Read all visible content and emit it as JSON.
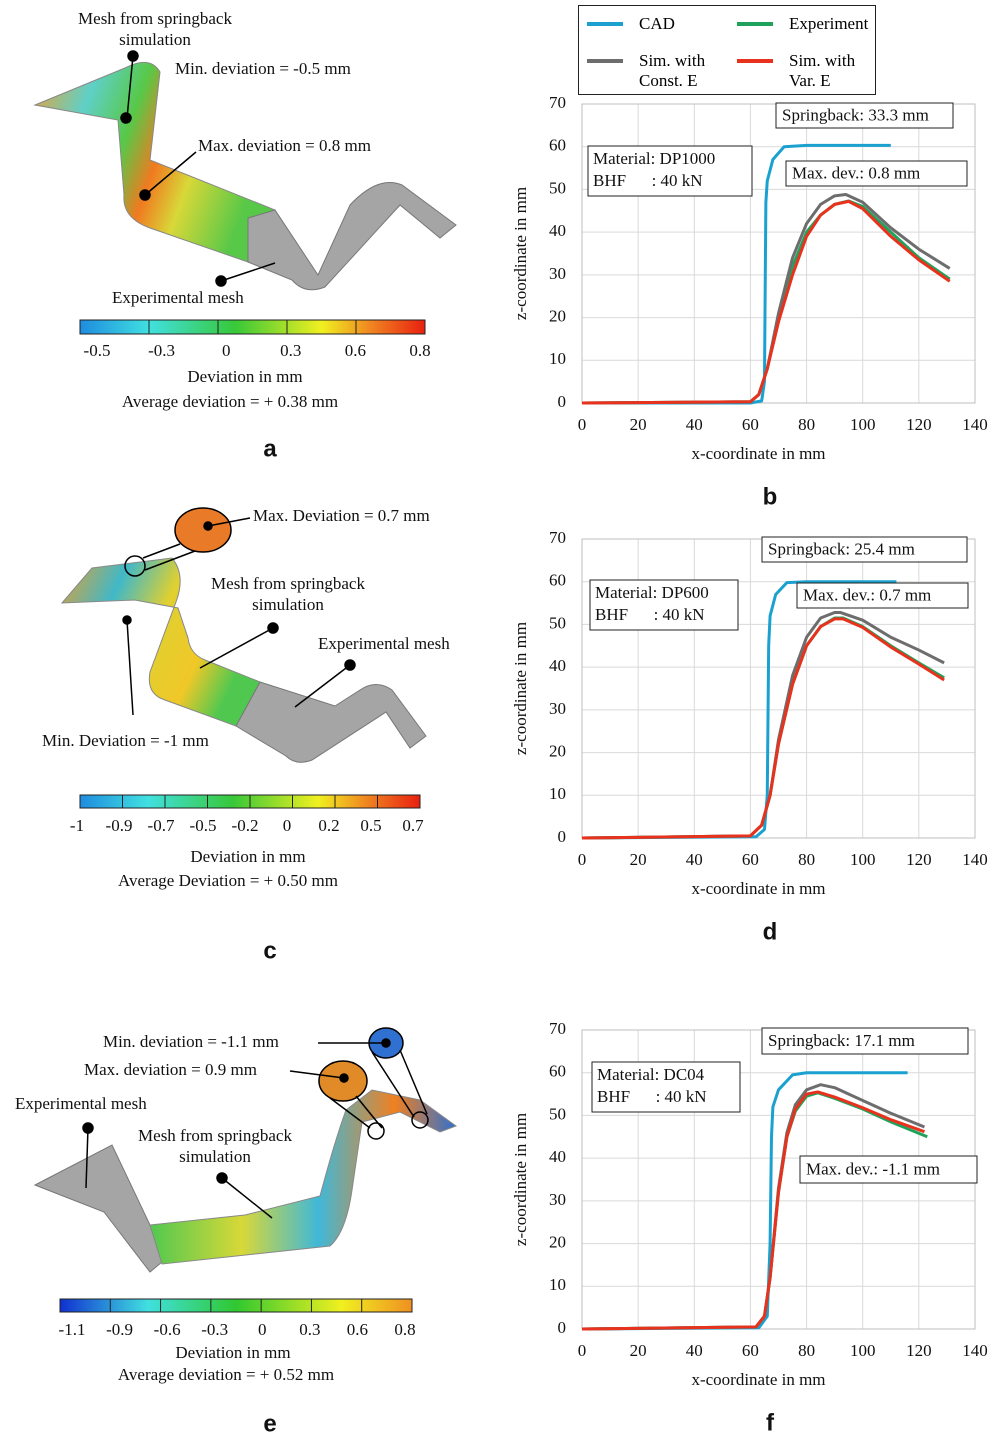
{
  "mesh_panels": [
    {
      "panel_label": "a",
      "annotations": [
        "Mesh from springback simulation",
        "Min. deviation = -0.5 mm",
        "Max. deviation = 0.8 mm",
        "Experimental mesh"
      ],
      "colorbar": {
        "ticks": [
          -0.5,
          -0.3,
          0,
          0.3,
          0.6,
          0.8
        ],
        "title": "Deviation in mm"
      },
      "average": "Average deviation = + 0.38 mm"
    },
    {
      "panel_label": "c",
      "annotations": [
        "Max. Deviation = 0.7 mm",
        "Mesh from springback simulation",
        "Experimental mesh",
        "Min. Deviation = -1 mm"
      ],
      "colorbar": {
        "ticks": [
          -1,
          -0.9,
          -0.7,
          -0.5,
          -0.2,
          0,
          0.2,
          0.5,
          0.7
        ],
        "title": "Deviation in mm"
      },
      "average": "Average Deviation = + 0.50 mm"
    },
    {
      "panel_label": "e",
      "annotations": [
        "Min. deviation = -1.1 mm",
        "Max. deviation = 0.9 mm",
        "Experimental mesh",
        "Mesh from springback simulation"
      ],
      "colorbar": {
        "ticks": [
          -1.1,
          -0.9,
          -0.6,
          -0.3,
          0,
          0.3,
          0.6,
          0.8
        ],
        "title": "Deviation in mm"
      },
      "average": "Average deviation = + 0.52 mm"
    }
  ],
  "chart_data": [
    {
      "type": "line",
      "panel_label": "b",
      "x_label": "x-coordinate in mm",
      "y_label": "z-coordinate in mm",
      "xlim": [
        0,
        140
      ],
      "ylim": [
        0,
        70
      ],
      "xticks": [
        0,
        20,
        40,
        60,
        80,
        100,
        120,
        140
      ],
      "yticks": [
        0,
        10,
        20,
        30,
        40,
        50,
        60,
        70
      ],
      "grid": true,
      "legend": true,
      "annotations": [
        "Springback: 33.3 mm",
        "Max. dev.: 0.8 mm"
      ],
      "material_box": [
        "Material: DP1000",
        "BHF      : 40 kN"
      ],
      "series": [
        {
          "name": "CAD",
          "color": "#1ba1d0",
          "x": [
            0,
            60,
            64,
            65,
            65.5,
            66,
            68,
            72,
            80,
            110
          ],
          "values": [
            0,
            0,
            0.5,
            5,
            47,
            52,
            57,
            60,
            60.3,
            60.3
          ]
        },
        {
          "name": "Experiment",
          "color": "#1fa35c",
          "x": [
            0,
            60,
            63,
            66,
            70,
            75,
            80,
            85,
            90,
            95,
            100,
            110,
            120,
            131
          ],
          "values": [
            0,
            0.3,
            2,
            8,
            20,
            32,
            40,
            44,
            46.5,
            47.3,
            46,
            40,
            34,
            29
          ]
        },
        {
          "name": "Sim. with Const. E",
          "color": "#6d6d6d",
          "x": [
            0,
            60,
            63,
            66,
            70,
            75,
            80,
            85,
            90,
            94,
            100,
            110,
            120,
            131
          ],
          "values": [
            0,
            0.3,
            2,
            8,
            21,
            34,
            42,
            46.5,
            48.5,
            48.8,
            47,
            41,
            36,
            31.5
          ]
        },
        {
          "name": "Sim. with Var. E",
          "color": "#e8321e",
          "x": [
            0,
            60,
            63,
            66,
            70,
            75,
            80,
            85,
            90,
            95,
            100,
            110,
            120,
            131
          ],
          "values": [
            0,
            0.3,
            2,
            8,
            19,
            30,
            39,
            44,
            46.5,
            47.2,
            45.5,
            39,
            33.5,
            28.5
          ]
        }
      ]
    },
    {
      "type": "line",
      "panel_label": "d",
      "x_label": "x-coordinate in mm",
      "y_label": "z-coordinate in mm",
      "xlim": [
        0,
        140
      ],
      "ylim": [
        0,
        70
      ],
      "xticks": [
        0,
        20,
        40,
        60,
        80,
        100,
        120,
        140
      ],
      "yticks": [
        0,
        10,
        20,
        30,
        40,
        50,
        60,
        70
      ],
      "grid": true,
      "annotations": [
        "Springback: 25.4 mm",
        "Max. dev.: 0.7 mm"
      ],
      "material_box": [
        "Material: DP600",
        "BHF      : 40 kN"
      ],
      "series": [
        {
          "color": "#1ba1d0",
          "x": [
            0,
            62,
            65,
            66,
            66.5,
            67,
            69,
            73,
            80,
            112
          ],
          "values": [
            0,
            0.3,
            2,
            10,
            45,
            52,
            57,
            59.8,
            60,
            60
          ]
        },
        {
          "color": "#1fa35c",
          "x": [
            0,
            60,
            64,
            67,
            70,
            75,
            80,
            85,
            90,
            93,
            100,
            110,
            120,
            129
          ],
          "values": [
            0,
            0.5,
            3,
            10,
            22,
            36,
            45,
            49.5,
            51.5,
            51.5,
            49.5,
            45,
            41,
            37.5
          ]
        },
        {
          "color": "#6d6d6d",
          "x": [
            0,
            60,
            64,
            67,
            70,
            75,
            80,
            85,
            90,
            92,
            100,
            110,
            120,
            129
          ],
          "values": [
            0,
            0.5,
            3,
            10,
            23,
            38,
            47,
            51.5,
            52.8,
            52.8,
            51,
            47,
            44,
            41
          ]
        },
        {
          "color": "#e8321e",
          "x": [
            0,
            60,
            64,
            67,
            70,
            75,
            80,
            85,
            90,
            93,
            100,
            110,
            120,
            129
          ],
          "values": [
            0,
            0.5,
            3,
            10,
            22,
            36,
            45,
            49.5,
            51.3,
            51.3,
            49.3,
            44.7,
            40.7,
            37
          ]
        }
      ]
    },
    {
      "type": "line",
      "panel_label": "f",
      "x_label": "x-coordinate in mm",
      "y_label": "z-coordinate in mm",
      "xlim": [
        0,
        140
      ],
      "ylim": [
        0,
        70
      ],
      "xticks": [
        0,
        20,
        40,
        60,
        80,
        100,
        120,
        140
      ],
      "yticks": [
        0,
        10,
        20,
        30,
        40,
        50,
        60,
        70
      ],
      "grid": true,
      "annotations": [
        "Springback: 17.1 mm",
        "Max. dev.: -1.1 mm"
      ],
      "material_box": [
        "Material: DC04",
        "BHF      : 40 kN"
      ],
      "series": [
        {
          "color": "#1ba1d0",
          "x": [
            0,
            63,
            66,
            67,
            67.5,
            68,
            70,
            75,
            80,
            116
          ],
          "values": [
            0,
            0.3,
            3,
            20,
            45,
            52,
            56,
            59.5,
            60,
            60
          ]
        },
        {
          "color": "#1fa35c",
          "x": [
            0,
            62,
            65,
            67,
            70,
            73,
            76,
            80,
            84,
            90,
            100,
            110,
            123
          ],
          "values": [
            0,
            0.5,
            3,
            12,
            32,
            45,
            51,
            54.5,
            55.3,
            54,
            51.5,
            48.5,
            45
          ]
        },
        {
          "color": "#6d6d6d",
          "x": [
            0,
            62,
            65,
            67,
            70,
            73,
            76,
            80,
            85,
            90,
            100,
            110,
            122
          ],
          "values": [
            0,
            0.5,
            3,
            12,
            33,
            46,
            52.5,
            56,
            57.2,
            56.5,
            53.5,
            50.5,
            47.3
          ]
        },
        {
          "color": "#e8321e",
          "x": [
            0,
            62,
            65,
            67,
            70,
            73,
            76,
            80,
            84,
            90,
            100,
            110,
            122
          ],
          "values": [
            0,
            0.5,
            3,
            12,
            32,
            45,
            51.5,
            55,
            55.5,
            54.3,
            51.8,
            49,
            46.2
          ]
        }
      ]
    }
  ]
}
